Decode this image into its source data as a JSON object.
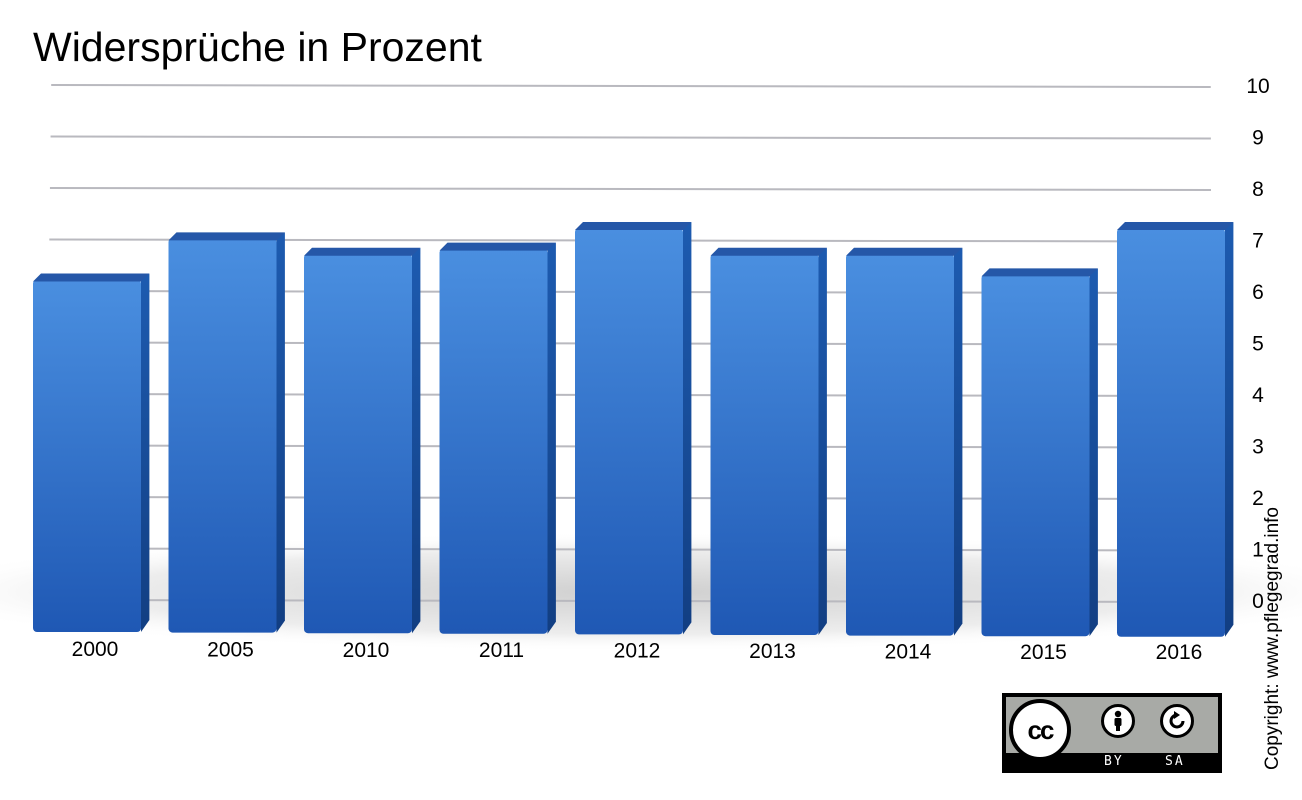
{
  "chart_data": {
    "type": "bar",
    "title": "Widersprüche in Prozent",
    "categories": [
      "2000",
      "2005",
      "2010",
      "2011",
      "2012",
      "2013",
      "2014",
      "2015",
      "2016"
    ],
    "values": [
      6.3,
      7.1,
      6.8,
      6.9,
      7.3,
      6.8,
      6.8,
      6.4,
      7.3
    ],
    "ylim": [
      0,
      10
    ],
    "yticks": [
      0,
      1,
      2,
      3,
      4,
      5,
      6,
      7,
      8,
      9,
      10
    ],
    "ytick_labels": [
      "0",
      "1",
      "2",
      "3",
      "4",
      "5",
      "6",
      "7",
      "8",
      "9",
      "10"
    ],
    "y_axis_side": "right",
    "grid": true,
    "bar_color": "#2f6fc7",
    "xlabel": "",
    "ylabel": ""
  },
  "copyright": "Copyright: www.pflegegrad.info",
  "license": {
    "logo_text": "cc",
    "icons": [
      "cc-icon",
      "by-icon",
      "sa-icon"
    ],
    "by_label": "BY",
    "sa_label": "SA"
  }
}
